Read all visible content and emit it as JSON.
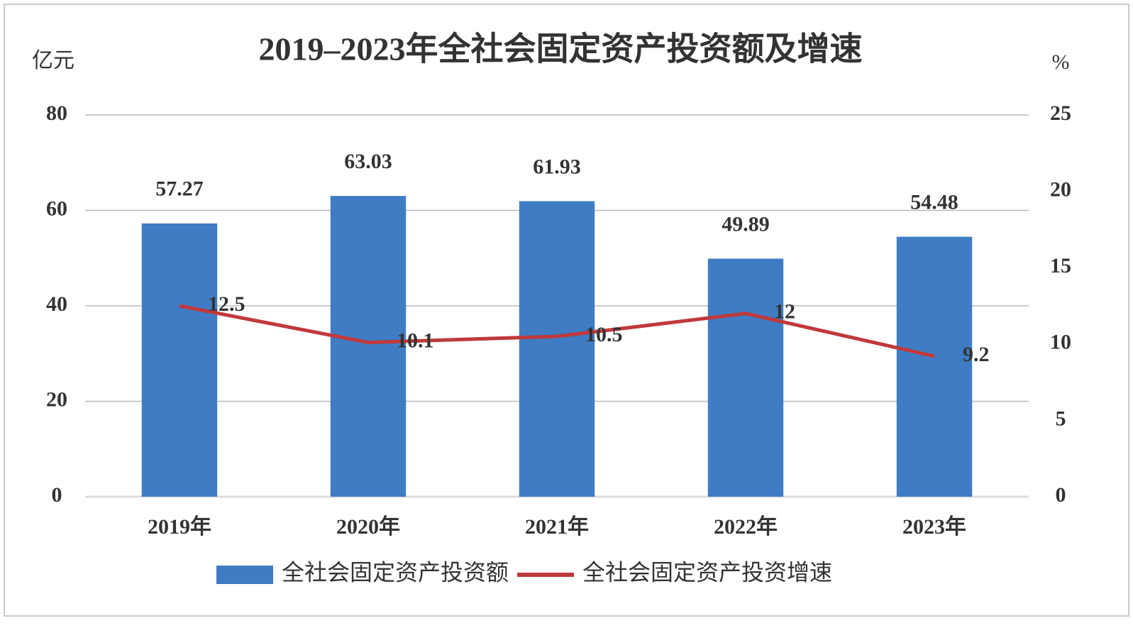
{
  "chart_data": {
    "type": "combo",
    "title": "2019–2023年全社会固定资产投资额及增速",
    "y_label": "亿元",
    "y2_label": "%",
    "categories": [
      "2019年",
      "2020年",
      "2021年",
      "2022年",
      "2023年"
    ],
    "series": [
      {
        "name": "全社会固定资产投资额",
        "type": "bar",
        "color": "#3f7cc4",
        "values": [
          57.27,
          63.03,
          61.93,
          49.89,
          54.48
        ]
      },
      {
        "name": "全社会固定资产投资增速",
        "type": "line",
        "axis": "y2",
        "color": "#c0393b",
        "values": [
          12.5,
          10.1,
          10.5,
          12,
          9.2
        ]
      }
    ],
    "ylim": [
      0,
      80
    ],
    "yticks": [
      0,
      20,
      40,
      60,
      80
    ],
    "y2lim": [
      0,
      25
    ],
    "y2ticks": [
      0,
      5,
      10,
      15,
      20,
      25
    ],
    "grid": true,
    "legend": "bottom"
  }
}
